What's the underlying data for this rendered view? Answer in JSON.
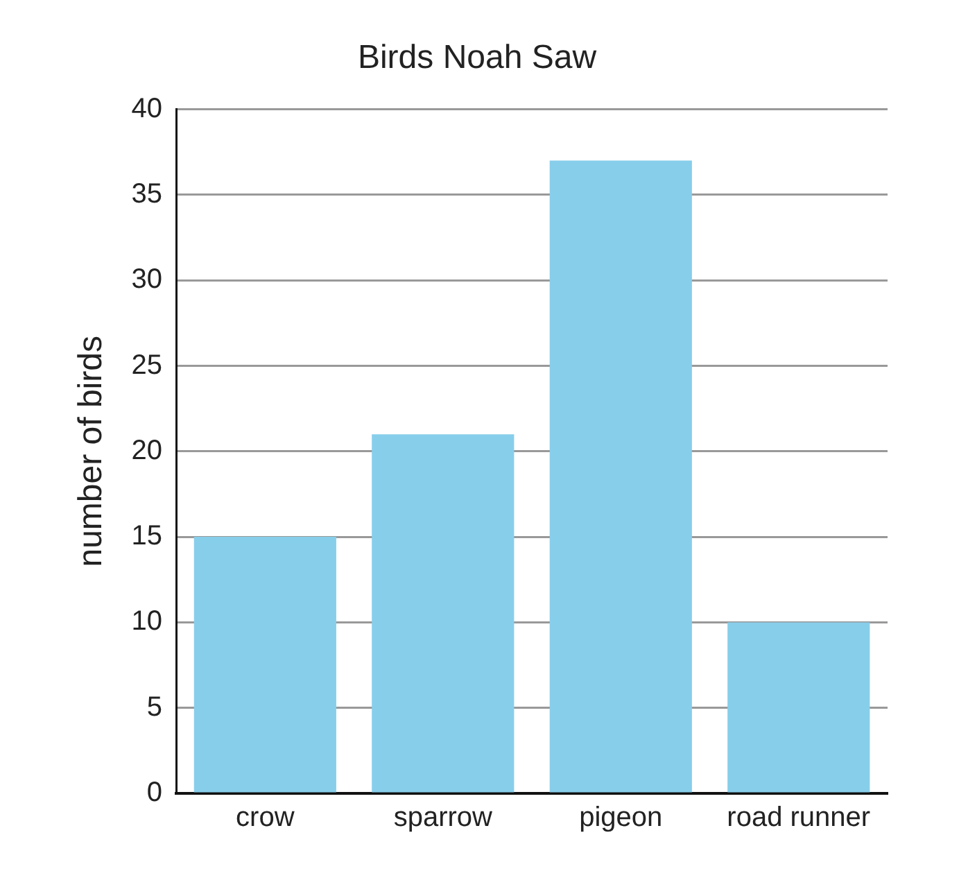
{
  "chart_data": {
    "type": "bar",
    "title": "Birds Noah Saw",
    "ylabel": "number of birds",
    "categories": [
      "crow",
      "sparrow",
      "pigeon",
      "road runner"
    ],
    "values": [
      15,
      21,
      37,
      10
    ],
    "color": "#87ceeb",
    "ylim": [
      0,
      40
    ],
    "yticks": [
      0,
      5,
      10,
      15,
      20,
      25,
      30,
      35,
      40
    ],
    "grid": "y"
  }
}
